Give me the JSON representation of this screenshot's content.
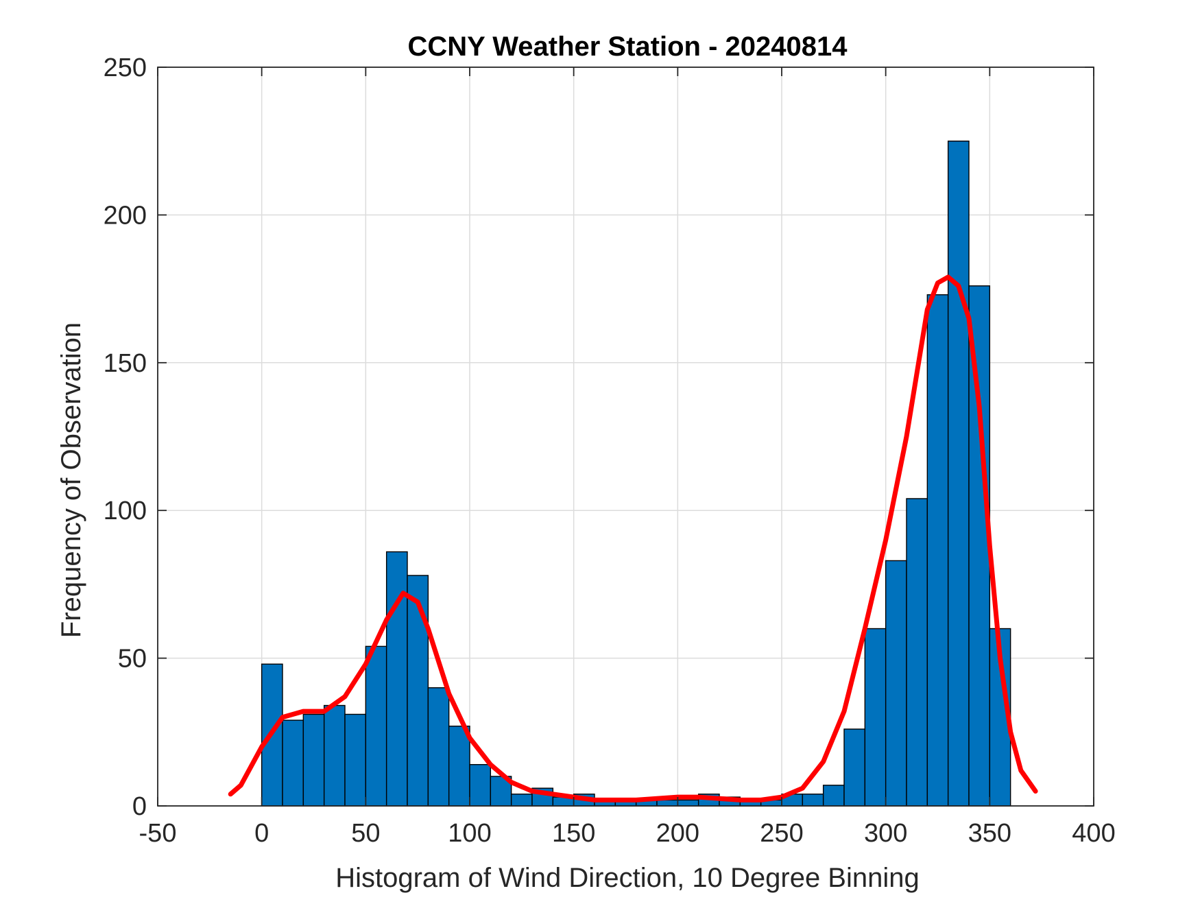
{
  "chart_data": {
    "type": "bar",
    "title": "CCNY Weather Station - 20240814",
    "xlabel": "Histogram of Wind Direction, 10 Degree Binning",
    "ylabel": "Frequency of Observation",
    "xlim": [
      -50,
      400
    ],
    "ylim": [
      0,
      250
    ],
    "xticks": [
      -50,
      0,
      50,
      100,
      150,
      200,
      250,
      300,
      350,
      400
    ],
    "yticks": [
      0,
      50,
      100,
      150,
      200,
      250
    ],
    "grid": true,
    "bin_width": 10,
    "bin_edges_start": [
      0,
      10,
      20,
      30,
      40,
      50,
      60,
      70,
      80,
      90,
      100,
      110,
      120,
      130,
      140,
      150,
      160,
      170,
      180,
      190,
      200,
      210,
      220,
      230,
      240,
      250,
      260,
      270,
      280,
      290,
      300,
      310,
      320,
      330,
      340,
      350
    ],
    "values": [
      48,
      29,
      31,
      34,
      31,
      54,
      86,
      78,
      40,
      27,
      14,
      10,
      4,
      6,
      3,
      4,
      2,
      2,
      2,
      2,
      2,
      4,
      3,
      2,
      2,
      4,
      4,
      7,
      26,
      60,
      83,
      104,
      173,
      225,
      176,
      60
    ],
    "bar_color": "#0072BD",
    "series": [
      {
        "type": "line",
        "color": "#FF0000",
        "x": [
          -15,
          -10,
          0,
          10,
          20,
          30,
          40,
          50,
          60,
          68,
          75,
          80,
          90,
          100,
          110,
          120,
          130,
          140,
          150,
          160,
          170,
          180,
          190,
          200,
          210,
          220,
          230,
          240,
          250,
          260,
          270,
          280,
          290,
          300,
          310,
          320,
          325,
          330,
          335,
          340,
          345,
          350,
          355,
          360,
          365,
          372
        ],
        "y": [
          4,
          7,
          20,
          30,
          32,
          32,
          37,
          48,
          63,
          72,
          69,
          60,
          38,
          23,
          14,
          8,
          5,
          4,
          3,
          2,
          2,
          2,
          2.5,
          3,
          3,
          2.5,
          2,
          2,
          3,
          6,
          15,
          32,
          60,
          90,
          125,
          168,
          177,
          179,
          176,
          165,
          135,
          88,
          50,
          25,
          12,
          5
        ]
      }
    ]
  }
}
